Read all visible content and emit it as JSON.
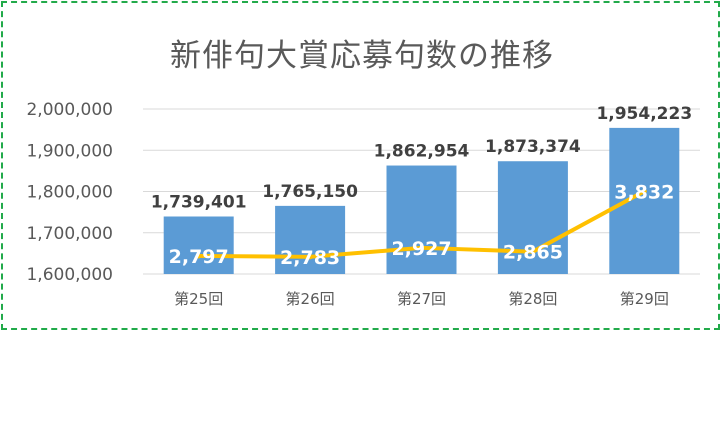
{
  "chart_data": {
    "type": "bar",
    "title": "新俳句大賞応募句数の推移",
    "categories": [
      "第25回",
      "第26回",
      "第27回",
      "第28回",
      "第29回"
    ],
    "series": [
      {
        "type": "bar",
        "values": [
          1739401,
          1765150,
          1862954,
          1873374,
          1954223
        ],
        "labels": [
          "1,739,401",
          "1,765,150",
          "1,862,954",
          "1,873,374",
          "1,954,223"
        ],
        "color": "#5b9bd5"
      },
      {
        "type": "line",
        "values": [
          2797,
          2783,
          2927,
          2865,
          3832
        ],
        "labels": [
          "2,797",
          "2,783",
          "2,927",
          "2,865",
          "3,832"
        ],
        "color": "#ffc000"
      }
    ],
    "ylim": [
      1600000,
      2000000
    ],
    "yticks": [
      "1,600,000",
      "1,700,000",
      "1,800,000",
      "1,900,000",
      "2,000,000"
    ],
    "grid": true,
    "frame_color": "#22aa4a"
  }
}
